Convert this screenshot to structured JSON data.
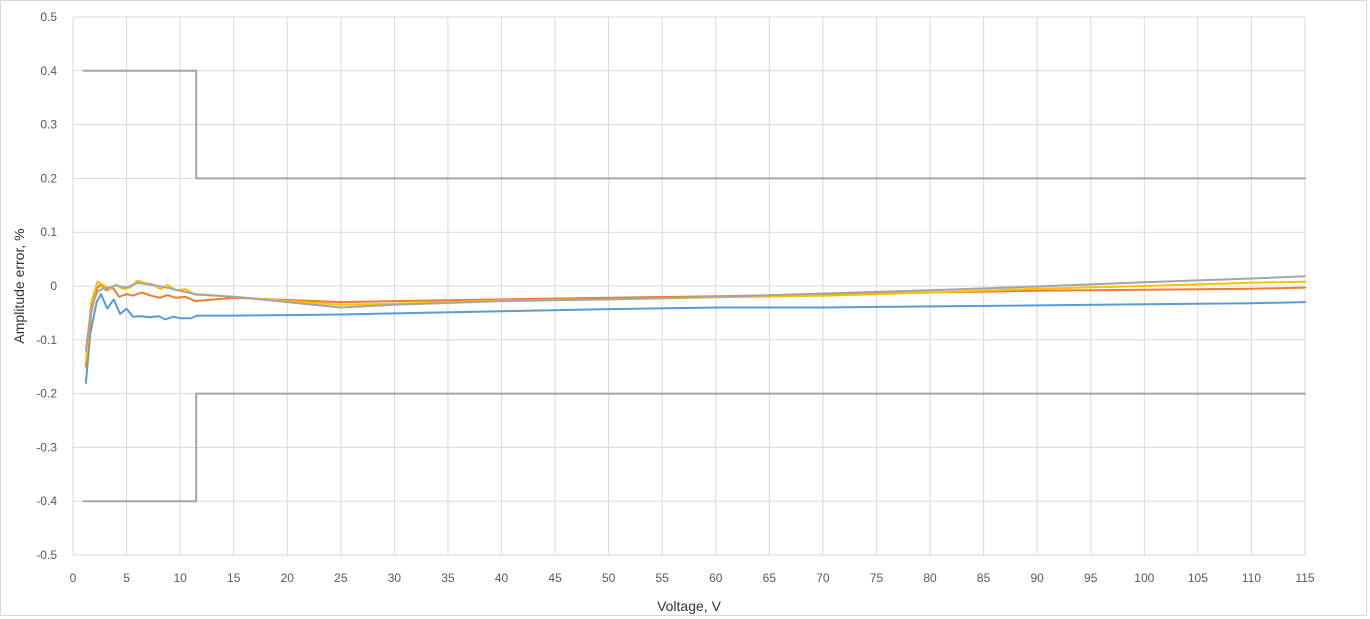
{
  "chart_data": {
    "type": "line",
    "title": "",
    "xlabel": "Voltage, V",
    "ylabel": "Amplitude error, %",
    "xlim": [
      0,
      115
    ],
    "ylim": [
      -0.5,
      0.5
    ],
    "grid": true,
    "x_ticks": [
      0,
      5,
      10,
      15,
      20,
      25,
      30,
      35,
      40,
      45,
      50,
      55,
      60,
      65,
      70,
      75,
      80,
      85,
      90,
      95,
      100,
      105,
      110,
      115
    ],
    "y_ticks": [
      {
        "value": 0.5,
        "label": "0.5"
      },
      {
        "value": 0.4,
        "label": "0.4"
      },
      {
        "value": 0.3,
        "label": "0.3"
      },
      {
        "value": 0.2,
        "label": "0.2"
      },
      {
        "value": 0.1,
        "label": "0.1"
      },
      {
        "value": 0,
        "label": "0"
      },
      {
        "value": -0.1,
        "label": "-0.1"
      },
      {
        "value": -0.2,
        "label": "-0.2"
      },
      {
        "value": -0.3,
        "label": "-0.3"
      },
      {
        "value": -0.4,
        "label": "-0.4"
      },
      {
        "value": -0.5,
        "label": "-0.5"
      }
    ],
    "series": [
      {
        "color": "#a5a5a5",
        "width": 2,
        "points": [
          [
            1,
            0.4
          ],
          [
            11.5,
            0.4
          ],
          [
            11.5,
            0.2
          ],
          [
            115,
            0.2
          ]
        ]
      },
      {
        "color": "#a5a5a5",
        "width": 2,
        "points": [
          [
            1,
            -0.4
          ],
          [
            11.5,
            -0.4
          ],
          [
            11.5,
            -0.2
          ],
          [
            115,
            -0.2
          ]
        ]
      },
      {
        "color": "#5b9bd5",
        "width": 2,
        "points": [
          [
            1.2,
            -0.18
          ],
          [
            1.6,
            -0.09
          ],
          [
            2.2,
            -0.03
          ],
          [
            2.6,
            -0.015
          ],
          [
            3.2,
            -0.042
          ],
          [
            3.8,
            -0.025
          ],
          [
            4.4,
            -0.052
          ],
          [
            5,
            -0.042
          ],
          [
            5.6,
            -0.057
          ],
          [
            6.3,
            -0.056
          ],
          [
            7.1,
            -0.058
          ],
          [
            8,
            -0.056
          ],
          [
            8.6,
            -0.062
          ],
          [
            9.4,
            -0.057
          ],
          [
            10,
            -0.06
          ],
          [
            11,
            -0.06
          ],
          [
            11.6,
            -0.055
          ],
          [
            15,
            -0.055
          ],
          [
            20,
            -0.054
          ],
          [
            25,
            -0.053
          ],
          [
            30,
            -0.051
          ],
          [
            40,
            -0.047
          ],
          [
            50,
            -0.043
          ],
          [
            60,
            -0.04
          ],
          [
            70,
            -0.04
          ],
          [
            80,
            -0.038
          ],
          [
            90,
            -0.036
          ],
          [
            100,
            -0.034
          ],
          [
            110,
            -0.032
          ],
          [
            115,
            -0.03
          ]
        ]
      },
      {
        "color": "#ed7d31",
        "width": 2,
        "points": [
          [
            1.2,
            -0.15
          ],
          [
            1.7,
            -0.05
          ],
          [
            2.2,
            -0.005
          ],
          [
            2.6,
            0.003
          ],
          [
            3.1,
            -0.008
          ],
          [
            3.7,
            -0.003
          ],
          [
            4.3,
            -0.02
          ],
          [
            5,
            -0.015
          ],
          [
            5.6,
            -0.018
          ],
          [
            6.4,
            -0.012
          ],
          [
            7.3,
            -0.018
          ],
          [
            8.1,
            -0.022
          ],
          [
            8.8,
            -0.017
          ],
          [
            9.6,
            -0.022
          ],
          [
            10.5,
            -0.02
          ],
          [
            11.4,
            -0.028
          ],
          [
            15,
            -0.022
          ],
          [
            20,
            -0.026
          ],
          [
            25,
            -0.03
          ],
          [
            30,
            -0.028
          ],
          [
            40,
            -0.025
          ],
          [
            50,
            -0.022
          ],
          [
            60,
            -0.019
          ],
          [
            70,
            -0.016
          ],
          [
            80,
            -0.012
          ],
          [
            90,
            -0.009
          ],
          [
            100,
            -0.007
          ],
          [
            110,
            -0.005
          ],
          [
            115,
            -0.003
          ]
        ]
      },
      {
        "color": "#ffc000",
        "width": 2,
        "points": [
          [
            1.2,
            -0.14
          ],
          [
            1.7,
            -0.03
          ],
          [
            2.3,
            0.008
          ],
          [
            2.8,
            0.002
          ],
          [
            3.4,
            -0.005
          ],
          [
            4,
            0.003
          ],
          [
            4.7,
            -0.006
          ],
          [
            5.4,
            -0.002
          ],
          [
            6,
            0.01
          ],
          [
            6.6,
            0.006
          ],
          [
            7.4,
            0.003
          ],
          [
            8.2,
            -0.006
          ],
          [
            8.8,
            0.002
          ],
          [
            9.6,
            -0.008
          ],
          [
            10.5,
            -0.006
          ],
          [
            11.4,
            -0.016
          ],
          [
            15,
            -0.02
          ],
          [
            20,
            -0.028
          ],
          [
            25,
            -0.035
          ],
          [
            30,
            -0.033
          ],
          [
            40,
            -0.027
          ],
          [
            50,
            -0.025
          ],
          [
            60,
            -0.021
          ],
          [
            70,
            -0.018
          ],
          [
            80,
            -0.012
          ],
          [
            90,
            -0.005
          ],
          [
            100,
            0
          ],
          [
            110,
            0.006
          ],
          [
            115,
            0.008
          ]
        ]
      },
      {
        "color": "#a5a5a5",
        "width": 2,
        "points": [
          [
            1.2,
            -0.12
          ],
          [
            1.7,
            -0.04
          ],
          [
            2.3,
            -0.01
          ],
          [
            2.8,
            -0.005
          ],
          [
            3.4,
            -0.003
          ],
          [
            4,
            0.001
          ],
          [
            5,
            -0.003
          ],
          [
            6,
            0.006
          ],
          [
            7,
            0.003
          ],
          [
            8,
            0.0
          ],
          [
            9,
            -0.004
          ],
          [
            10,
            -0.009
          ],
          [
            11.4,
            -0.015
          ],
          [
            15,
            -0.02
          ],
          [
            20,
            -0.03
          ],
          [
            25,
            -0.04
          ],
          [
            30,
            -0.035
          ],
          [
            40,
            -0.028
          ],
          [
            50,
            -0.025
          ],
          [
            60,
            -0.02
          ],
          [
            70,
            -0.014
          ],
          [
            80,
            -0.008
          ],
          [
            90,
            -0.001
          ],
          [
            100,
            0.007
          ],
          [
            110,
            0.014
          ],
          [
            115,
            0.018
          ]
        ]
      }
    ]
  }
}
